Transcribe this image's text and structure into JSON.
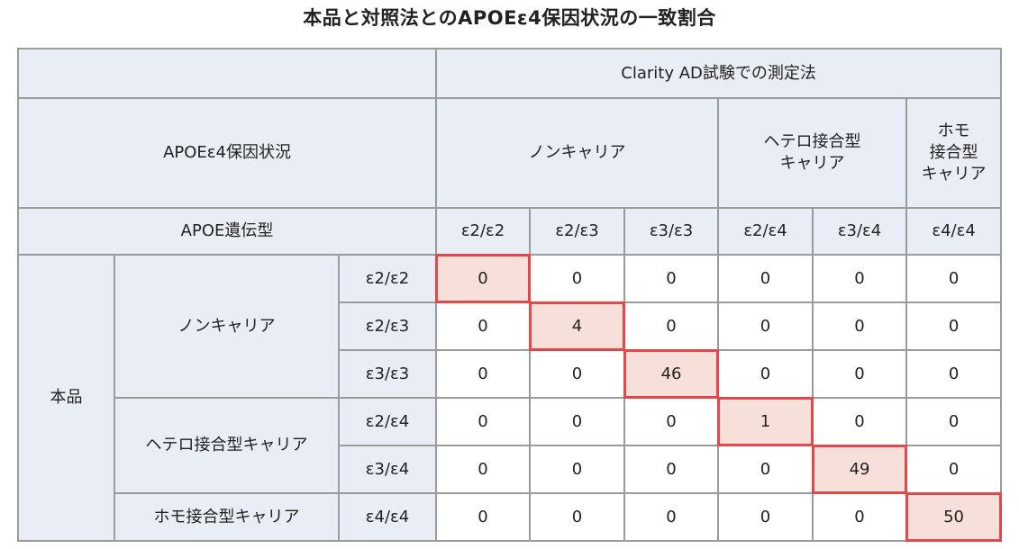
{
  "title": "本品と対照法とのAPOEε4保因状況の一致割合",
  "header": {
    "comparator": "Clarity AD試験での測定法",
    "status_label": "APOEε4保因状況",
    "genotype_label": "APOE遺伝型",
    "groups": [
      "ノンキャリア",
      "ヘテロ接合型\nキャリア",
      "ホモ\n接合型\nキャリア"
    ],
    "genotypes": [
      "ε2/ε2",
      "ε2/ε3",
      "ε3/ε3",
      "ε2/ε4",
      "ε3/ε4",
      "ε4/ε4"
    ]
  },
  "rows": {
    "product_label": "本品",
    "groups": [
      "ノンキャリア",
      "ヘテロ接合型キャリア",
      "ホモ接合型キャリア"
    ],
    "genotypes": [
      "ε2/ε2",
      "ε2/ε3",
      "ε3/ε3",
      "ε2/ε4",
      "ε3/ε4",
      "ε4/ε4"
    ]
  },
  "matrix": [
    [
      "0",
      "0",
      "0",
      "0",
      "0",
      "0"
    ],
    [
      "0",
      "4",
      "0",
      "0",
      "0",
      "0"
    ],
    [
      "0",
      "0",
      "46",
      "0",
      "0",
      "0"
    ],
    [
      "0",
      "0",
      "0",
      "1",
      "0",
      "0"
    ],
    [
      "0",
      "0",
      "0",
      "0",
      "49",
      "0"
    ],
    [
      "0",
      "0",
      "0",
      "0",
      "0",
      "50"
    ]
  ],
  "colors": {
    "header_bg": "#e9edf5",
    "border": "#9b9b9b",
    "highlight_bg": "#f8e0da",
    "highlight_border": "#e0484b"
  }
}
